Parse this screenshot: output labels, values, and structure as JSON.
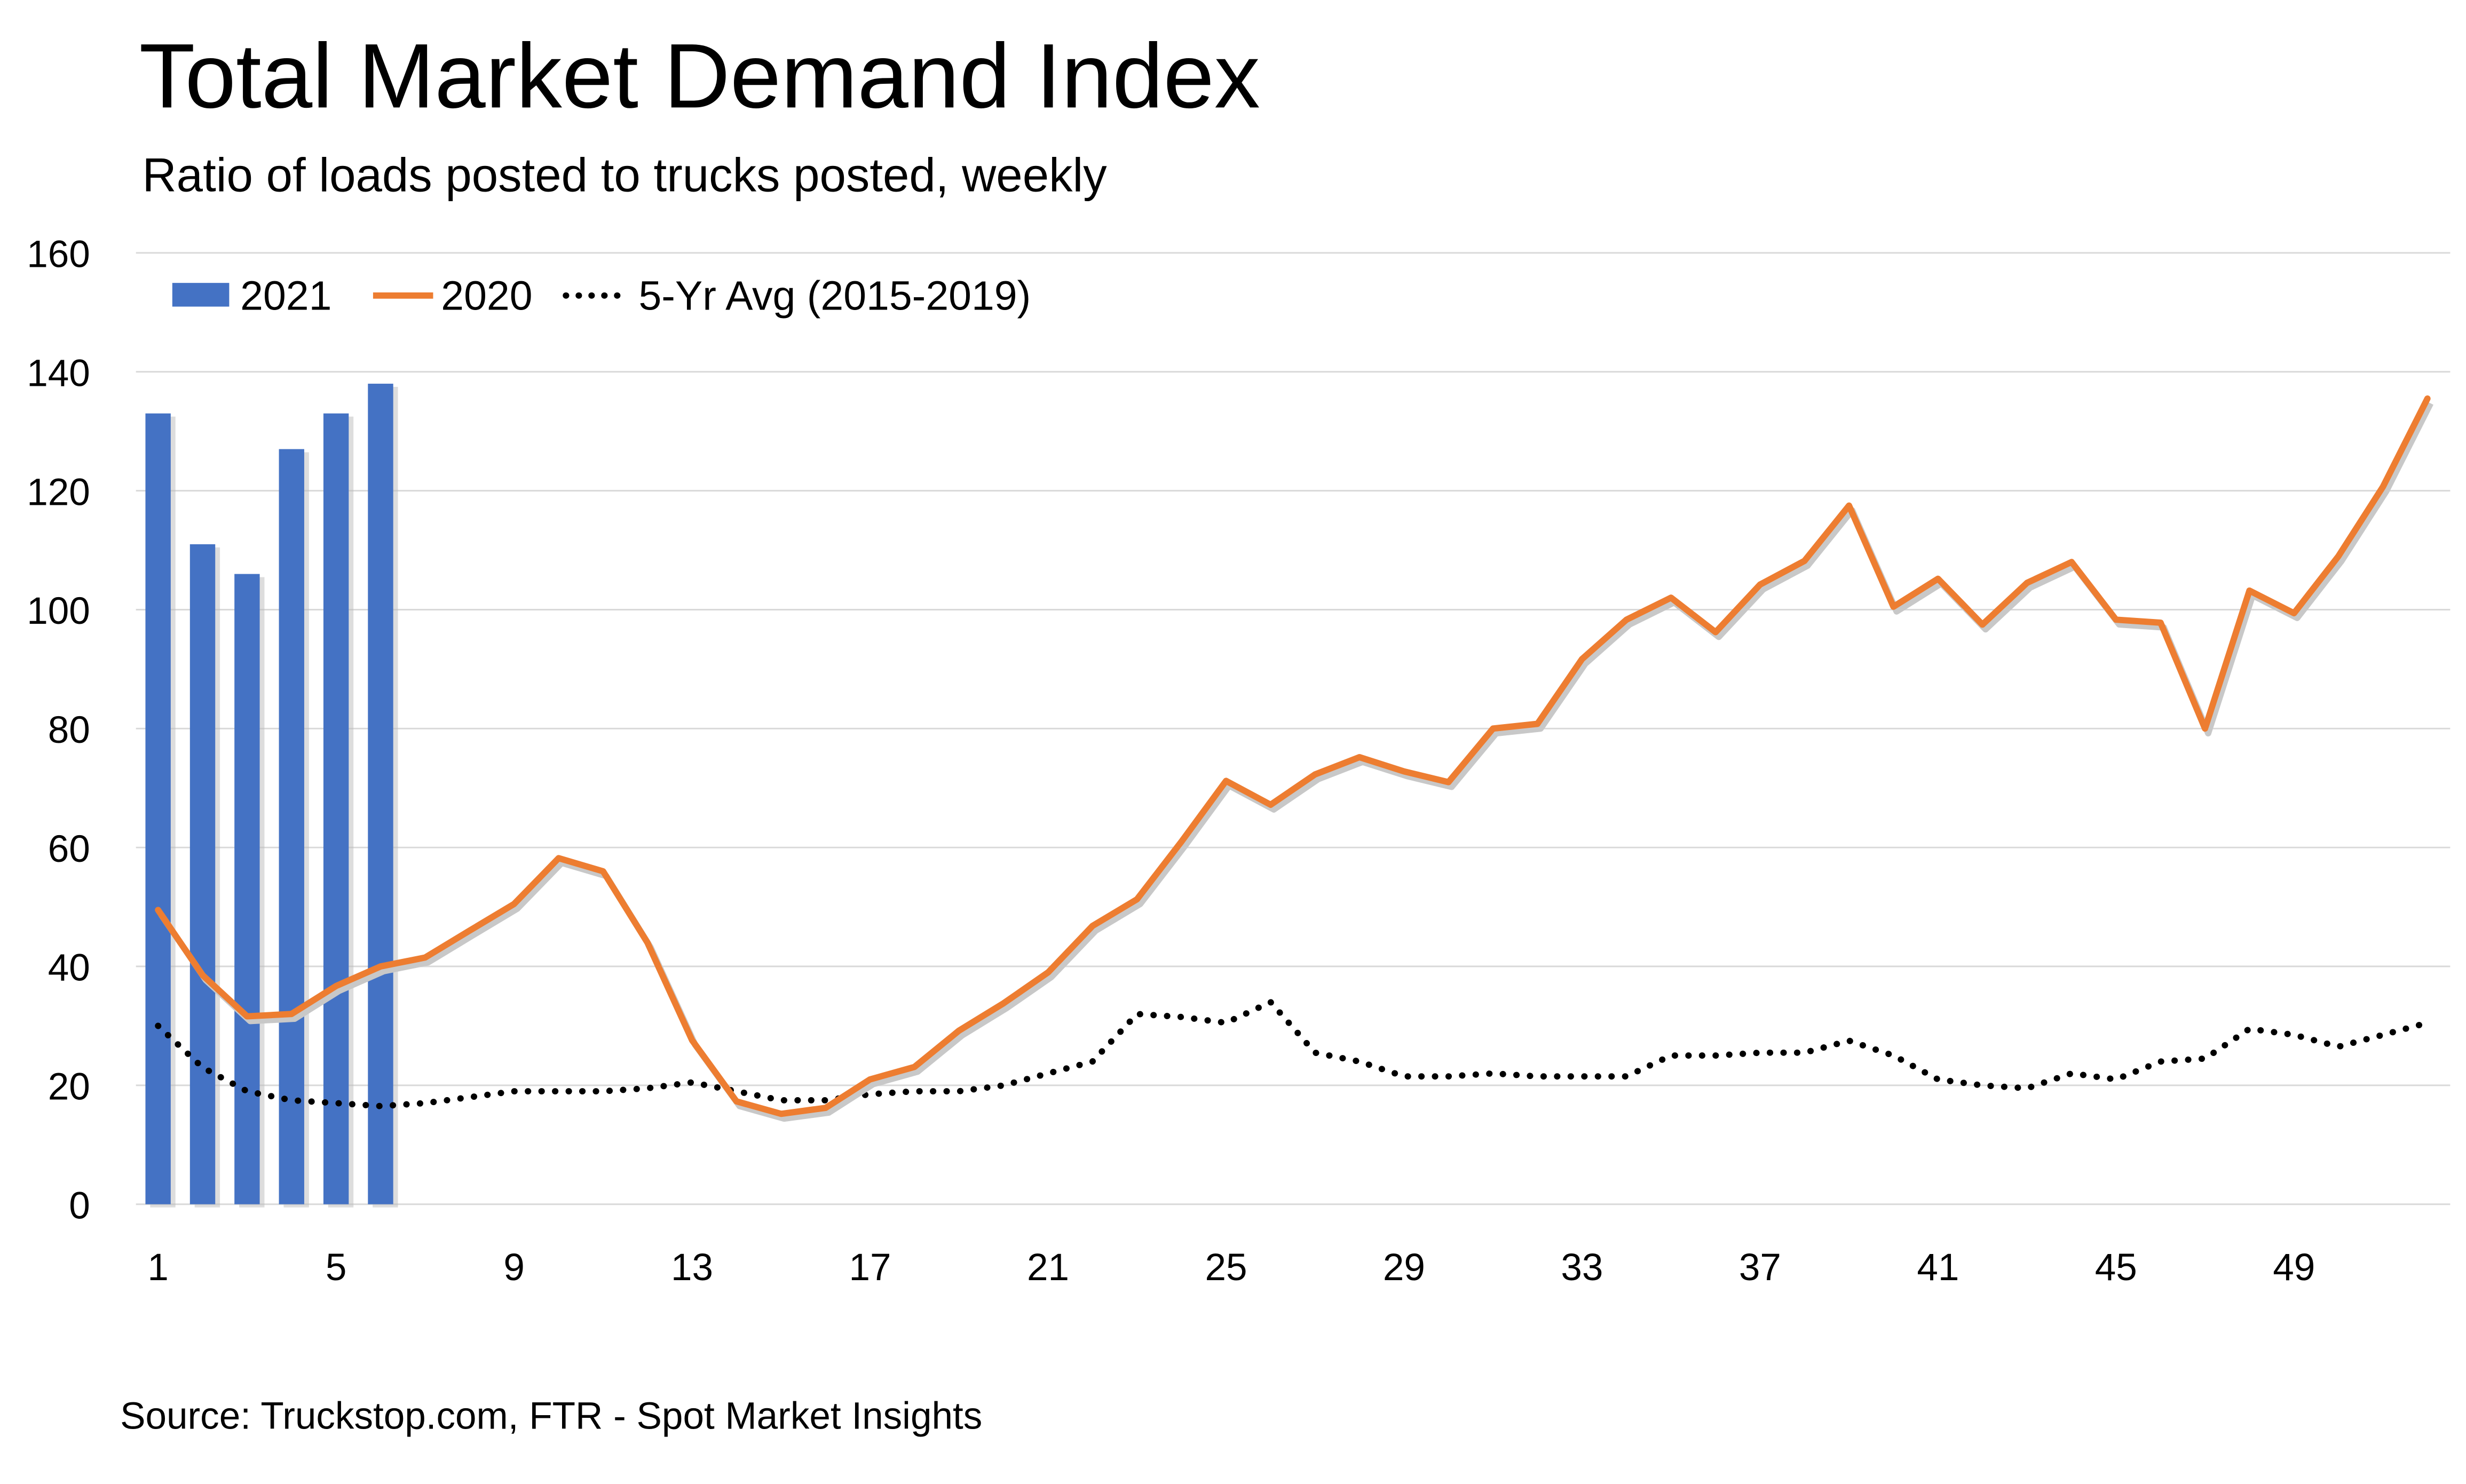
{
  "chart_data": {
    "type": "bar+line",
    "title": "Total Market Demand Index",
    "subtitle": "Ratio of loads posted to trucks posted, weekly",
    "source": "Source: Truckstop.com, FTR - Spot Market Insights",
    "xlabel": "",
    "ylabel": "",
    "ylim": [
      0,
      160
    ],
    "yticks": [
      0,
      20,
      40,
      60,
      80,
      100,
      120,
      140,
      160
    ],
    "xlim": [
      1,
      52
    ],
    "xticks": [
      1,
      5,
      9,
      13,
      17,
      21,
      25,
      29,
      33,
      37,
      41,
      45,
      49
    ],
    "grid": true,
    "legend_placement": "top-left",
    "series": [
      {
        "name": "2021",
        "kind": "bar",
        "color": "#4472c4",
        "x": [
          1,
          2,
          3,
          4,
          5,
          6
        ],
        "values": [
          133,
          111,
          106,
          127,
          133,
          138
        ]
      },
      {
        "name": "2020",
        "kind": "line",
        "color": "#ed7d31",
        "x": [
          1,
          2,
          3,
          4,
          5,
          6,
          7,
          8,
          9,
          10,
          11,
          12,
          13,
          14,
          15,
          16,
          17,
          18,
          19,
          20,
          21,
          22,
          23,
          24,
          25,
          26,
          27,
          28,
          29,
          30,
          31,
          32,
          33,
          34,
          35,
          36,
          37,
          38,
          39,
          40,
          41,
          42,
          43,
          44,
          45,
          46,
          47,
          48,
          49,
          50,
          51,
          52
        ],
        "values": [
          49.5,
          38.5,
          31.6,
          32,
          36.7,
          40,
          41.5,
          46,
          50.5,
          58.2,
          56,
          44,
          27.6,
          17.3,
          15.2,
          16.2,
          21,
          23.1,
          29.2,
          33.8,
          39,
          46.8,
          51.3,
          61,
          71.2,
          67.2,
          72.3,
          75.2,
          72.8,
          71,
          80,
          80.8,
          91.7,
          98.3,
          102,
          96.2,
          104.2,
          108.2,
          117.5,
          100.5,
          105.2,
          97.5,
          104.5,
          108,
          98.3,
          97.8,
          80,
          103.2,
          99.4,
          109,
          120.7,
          135.5
        ]
      },
      {
        "name": "5-Yr Avg (2015-2019)",
        "kind": "dotted-line",
        "color": "#000000",
        "x": [
          1,
          2,
          3,
          4,
          5,
          6,
          7,
          8,
          9,
          10,
          11,
          12,
          13,
          14,
          15,
          16,
          17,
          18,
          19,
          20,
          21,
          22,
          23,
          24,
          25,
          26,
          27,
          28,
          29,
          30,
          31,
          32,
          33,
          34,
          35,
          36,
          37,
          38,
          39,
          40,
          41,
          42,
          43,
          44,
          45,
          46,
          47,
          48,
          49,
          50,
          51,
          52
        ],
        "values": [
          30,
          23,
          19,
          17.5,
          17,
          16.5,
          17,
          18,
          19,
          19,
          19,
          19.5,
          20.5,
          19,
          17.5,
          17.5,
          18.5,
          19,
          19,
          20,
          22,
          24,
          32,
          31.5,
          30.5,
          34,
          25.5,
          24,
          21.5,
          21.5,
          22,
          21.5,
          21.5,
          21.5,
          25,
          25,
          25.5,
          25.5,
          27.5,
          25,
          21,
          20,
          19.5,
          22,
          21,
          24,
          24.5,
          29.5,
          28.5,
          26.5,
          28.5,
          30.5
        ]
      }
    ]
  }
}
